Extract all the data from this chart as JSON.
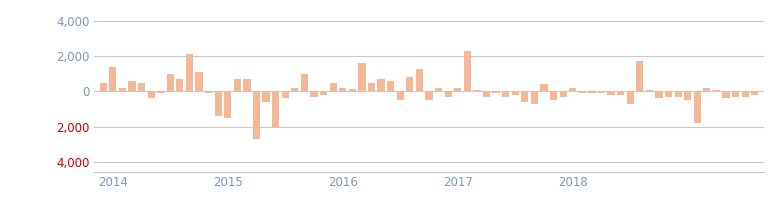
{
  "values": [
    500,
    1400,
    200,
    600,
    500,
    -400,
    -100,
    1000,
    700,
    2100,
    1100,
    -100,
    -1400,
    -1500,
    700,
    700,
    -2700,
    -600,
    -2000,
    -400,
    200,
    1000,
    -300,
    -200,
    500,
    200,
    150,
    1600,
    500,
    700,
    600,
    -500,
    800,
    1300,
    -500,
    200,
    -300,
    200,
    2300,
    100,
    -300,
    -100,
    -300,
    -200,
    -600,
    -700,
    400,
    -500,
    -300,
    200,
    -100,
    -100,
    -100,
    -200,
    -200,
    -700,
    1700,
    100,
    -400,
    -300,
    -300,
    -500,
    -1800,
    200,
    100,
    -400,
    -300,
    -300,
    -200
  ],
  "bar_color": "#F5B896",
  "yticks": [
    -4000,
    -2000,
    0,
    2000,
    4000
  ],
  "ylim": [
    -4600,
    4600
  ],
  "xtick_labels": [
    "2014",
    "2015",
    "2016",
    "2017",
    "2018"
  ],
  "year_positions": [
    1,
    13,
    25,
    37,
    49
  ],
  "negative_tick_color": "#cc0000",
  "positive_tick_color": "#8096b4",
  "grid_color": "#c8c8c8",
  "background_color": "#ffffff",
  "bar_width": 0.75
}
